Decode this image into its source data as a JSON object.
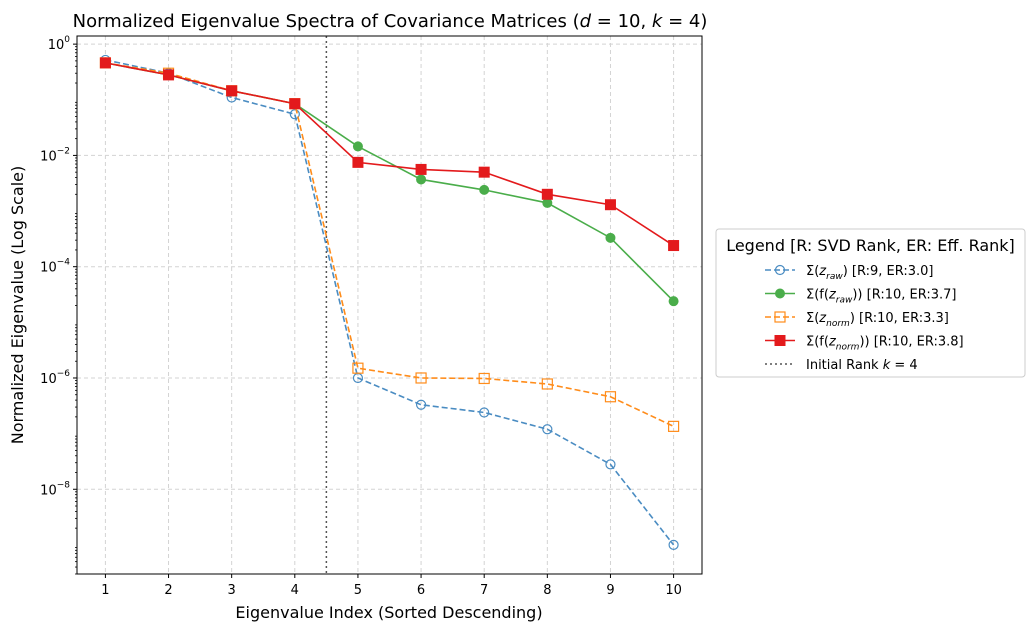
{
  "chart_data": {
    "type": "line",
    "title": "Normalized Eigenvalue Spectra of Covariance Matrices (d = 10, k = 4)",
    "xlabel": "Eigenvalue Index (Sorted Descending)",
    "ylabel": "Normalized Eigenvalue (Log Scale)",
    "x": [
      1,
      2,
      3,
      4,
      5,
      6,
      7,
      8,
      9,
      10
    ],
    "xlim": [
      0.55,
      10.45
    ],
    "ylim": [
      3e-10,
      1.4
    ],
    "yscale": "log",
    "y_ticks": [
      {
        "exp": 0,
        "label": "10^0"
      },
      {
        "exp": -2,
        "label": "10^-2"
      },
      {
        "exp": -4,
        "label": "10^-4"
      },
      {
        "exp": -6,
        "label": "10^-6"
      },
      {
        "exp": -8,
        "label": "10^-8"
      }
    ],
    "grid": true,
    "series": [
      {
        "name": "Σ(z_raw) [R:9, ER:3.0]",
        "label_parts": {
          "main": "Σ(z",
          "sub": "raw",
          "tail": ") [R:9, ER:3.0]"
        },
        "color": "#4a8cc2",
        "linestyle": "dashed",
        "marker": "circle-open",
        "values": [
          0.52,
          0.3,
          0.11,
          0.055,
          1e-06,
          3.3e-07,
          2.4e-07,
          1.2e-07,
          2.8e-08,
          1e-09
        ]
      },
      {
        "name": "Σ(f(z_raw)) [R:10, ER:3.7]",
        "label_parts": {
          "main": "Σ(f(z",
          "sub": "raw",
          "tail": ")) [R:10, ER:3.7]"
        },
        "color": "#4aad4a",
        "linestyle": "solid",
        "marker": "circle-filled",
        "values": [
          0.46,
          0.28,
          0.145,
          0.085,
          0.0145,
          0.0037,
          0.0024,
          0.0014,
          0.00033,
          2.4e-05
        ]
      },
      {
        "name": "Σ(z_norm) [R:10, ER:3.3]",
        "label_parts": {
          "main": "Σ(z",
          "sub": "norm",
          "tail": ") [R:10, ER:3.3]"
        },
        "color": "#ff8c1a",
        "linestyle": "dashed",
        "marker": "square-open",
        "values": [
          0.46,
          0.3,
          0.145,
          0.085,
          1.5e-06,
          1e-06,
          9.8e-07,
          7.8e-07,
          4.6e-07,
          1.35e-07
        ]
      },
      {
        "name": "Σ(f(z_norm)) [R:10, ER:3.8]",
        "label_parts": {
          "main": "Σ(f(z",
          "sub": "norm",
          "tail": ")) [R:10, ER:3.8]"
        },
        "color": "#e31a1c",
        "linestyle": "solid",
        "marker": "square-filled",
        "values": [
          0.46,
          0.28,
          0.145,
          0.085,
          0.0075,
          0.0056,
          0.005,
          0.002,
          0.0013,
          0.00024
        ]
      }
    ],
    "vline": {
      "x": 4.5,
      "label": "Initial Rank k = 4",
      "color": "#555555",
      "linestyle": "dotted"
    },
    "legend": {
      "title": "Legend [R: SVD Rank, ER: Eff. Rank]",
      "placement": "right, outside plot"
    }
  }
}
